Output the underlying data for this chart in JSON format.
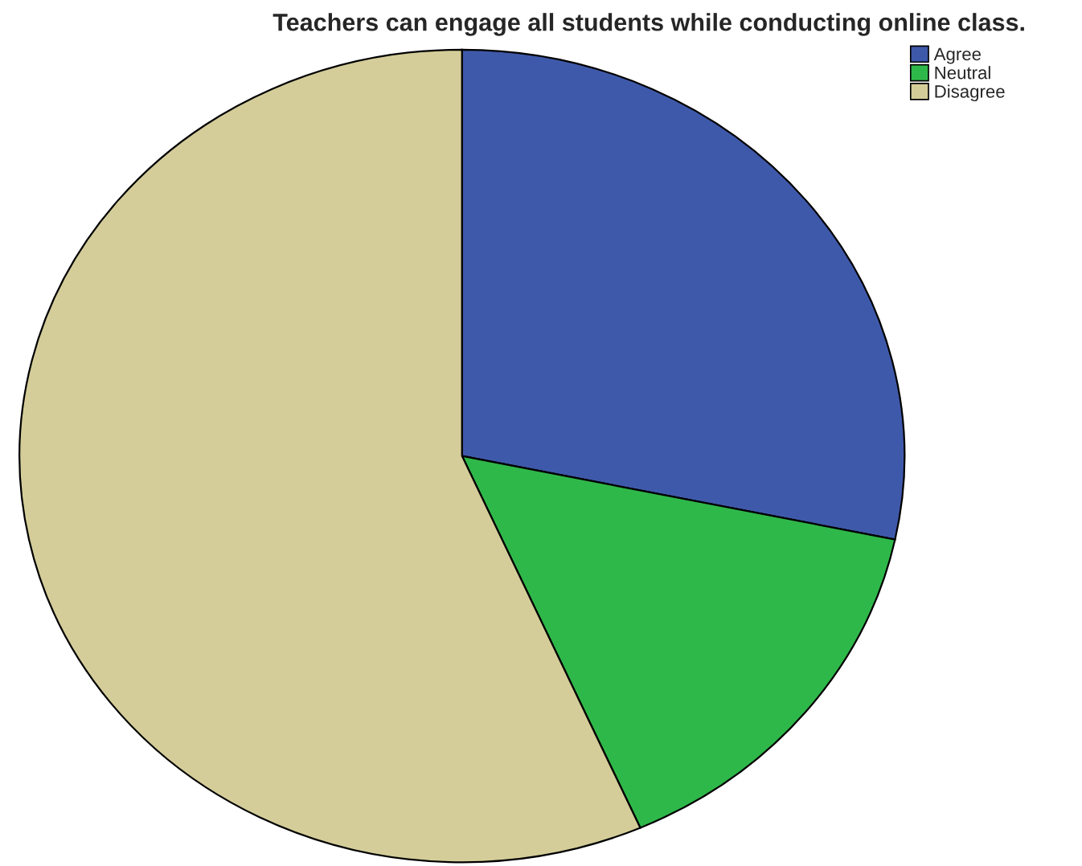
{
  "chart_data": {
    "type": "pie",
    "title": "Teachers can engage all students while conducting online class.",
    "categories": [
      "Agree",
      "Neutral",
      "Disagree"
    ],
    "values": [
      28.3,
      15.1,
      56.6
    ],
    "colors": [
      "#3f59aa",
      "#2fb84a",
      "#d4cd99"
    ],
    "legend": "top right"
  }
}
